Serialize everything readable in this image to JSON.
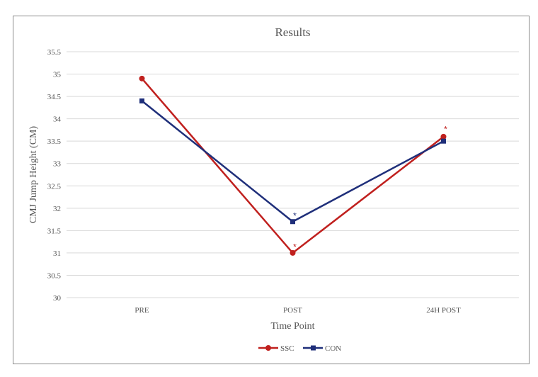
{
  "chart_data": {
    "type": "line",
    "title": "Results",
    "xlabel": "Time Point",
    "ylabel": "CMJ Jump Height (CM)",
    "categories": [
      "PRE",
      "POST",
      "24H POST"
    ],
    "ylim": [
      30,
      35.5
    ],
    "yticks": [
      "30",
      "30.5",
      "31",
      "31.5",
      "32",
      "32.5",
      "33",
      "33.5",
      "34",
      "34.5",
      "35",
      "35.5"
    ],
    "grid": true,
    "legend_position": "bottom",
    "series": [
      {
        "name": "SSC",
        "values": [
          34.9,
          31.0,
          33.6
        ],
        "color": "#c0201e",
        "marker": "circle"
      },
      {
        "name": "CON",
        "values": [
          34.4,
          31.7,
          33.5
        ],
        "color": "#1f2f7a",
        "marker": "square"
      }
    ],
    "annotations": [
      {
        "text": "*",
        "category": "POST",
        "value": 31.15,
        "color": "#c0201e"
      },
      {
        "text": "*",
        "category": "POST",
        "value": 31.85,
        "color": "#1f2f7a"
      },
      {
        "text": "*",
        "category": "24H POST",
        "value": 33.78,
        "color": "#c0201e"
      }
    ]
  }
}
